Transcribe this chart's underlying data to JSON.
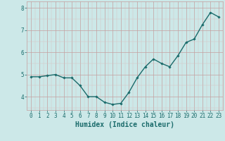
{
  "x": [
    0,
    1,
    2,
    3,
    4,
    5,
    6,
    7,
    8,
    9,
    10,
    11,
    12,
    13,
    14,
    15,
    16,
    17,
    18,
    19,
    20,
    21,
    22,
    23
  ],
  "y": [
    4.9,
    4.9,
    4.95,
    5.0,
    4.85,
    4.85,
    4.5,
    4.0,
    4.0,
    3.75,
    3.65,
    3.7,
    4.2,
    4.85,
    5.35,
    5.7,
    5.5,
    5.35,
    5.85,
    6.45,
    6.6,
    7.25,
    7.8,
    7.6
  ],
  "line_color": "#1a6b6b",
  "marker": "D",
  "marker_size": 1.8,
  "bg_color": "#cce8e8",
  "grid_color_major": "#c4a0a0",
  "grid_color_minor": "#d8c0c0",
  "xlabel": "Humidex (Indice chaleur)",
  "xlabel_fontsize": 7.0,
  "xlabel_color": "#1a6b6b",
  "yticks": [
    4,
    5,
    6,
    7,
    8
  ],
  "xtick_labels": [
    "0",
    "1",
    "2",
    "3",
    "4",
    "5",
    "6",
    "7",
    "8",
    "9",
    "10",
    "11",
    "12",
    "13",
    "14",
    "15",
    "16",
    "17",
    "18",
    "19",
    "20",
    "21",
    "22",
    "23"
  ],
  "ylim": [
    3.4,
    8.3
  ],
  "xlim": [
    -0.5,
    23.5
  ],
  "tick_color": "#1a6b6b",
  "tick_fontsize": 5.5,
  "linewidth": 1.0
}
